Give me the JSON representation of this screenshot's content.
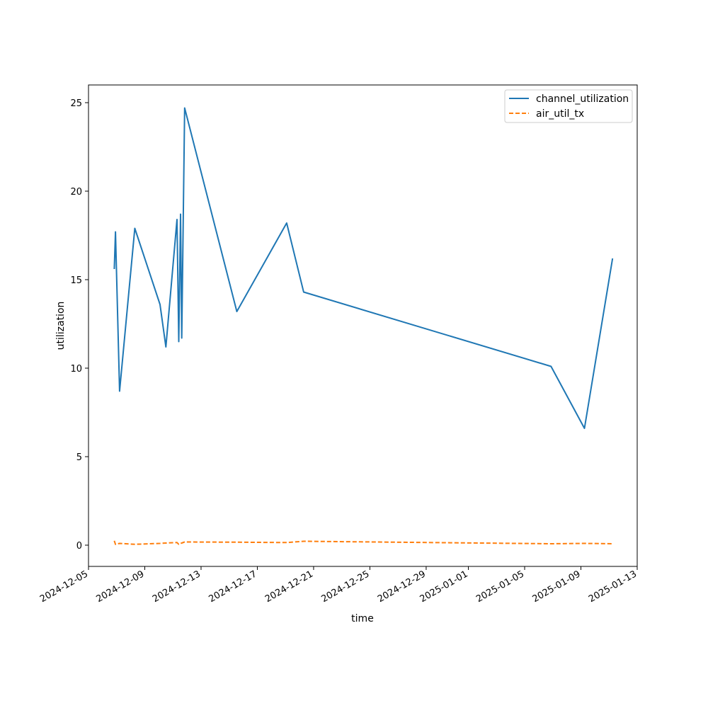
{
  "chart_data": {
    "type": "line",
    "title": "",
    "xlabel": "time",
    "ylabel": "utilization",
    "xlim": [
      "2024-12-05T00:00",
      "2025-01-13T00:00"
    ],
    "ylim": [
      -1.2,
      26
    ],
    "x_ticks": [
      "2024-12-05",
      "2024-12-09",
      "2024-12-13",
      "2024-12-17",
      "2024-12-21",
      "2024-12-25",
      "2024-12-29",
      "2025-01-01",
      "2025-01-05",
      "2025-01-09",
      "2025-01-13"
    ],
    "y_ticks": [
      0,
      5,
      10,
      15,
      20,
      25
    ],
    "grid": false,
    "legend": "top-right",
    "series": [
      {
        "name": "channel_utilization",
        "color": "#1f77b4",
        "style": "solid",
        "points": [
          {
            "x": "2024-12-06T20:00",
            "y": 15.6
          },
          {
            "x": "2024-12-06T22:00",
            "y": 17.7
          },
          {
            "x": "2024-12-07T05:00",
            "y": 8.7
          },
          {
            "x": "2024-12-08T07:00",
            "y": 17.9
          },
          {
            "x": "2024-12-10T02:00",
            "y": 13.6
          },
          {
            "x": "2024-12-10T12:00",
            "y": 11.2
          },
          {
            "x": "2024-12-11T07:00",
            "y": 18.4
          },
          {
            "x": "2024-12-11T10:00",
            "y": 11.5
          },
          {
            "x": "2024-12-11T13:00",
            "y": 18.7
          },
          {
            "x": "2024-12-11T15:00",
            "y": 11.7
          },
          {
            "x": "2024-12-11T20:00",
            "y": 24.7
          },
          {
            "x": "2024-12-15T13:00",
            "y": 13.2
          },
          {
            "x": "2024-12-19T02:00",
            "y": 18.2
          },
          {
            "x": "2024-12-20T07:00",
            "y": 14.3
          },
          {
            "x": "2025-01-06T21:00",
            "y": 10.1
          },
          {
            "x": "2025-01-09T06:00",
            "y": 6.6
          },
          {
            "x": "2025-01-11T06:00",
            "y": 16.2
          }
        ]
      },
      {
        "name": "air_util_tx",
        "color": "#ff7f0e",
        "style": "dashed",
        "points": [
          {
            "x": "2024-12-06T20:00",
            "y": 0.25
          },
          {
            "x": "2024-12-06T22:00",
            "y": 0.05
          },
          {
            "x": "2024-12-07T05:00",
            "y": 0.1
          },
          {
            "x": "2024-12-08T07:00",
            "y": 0.05
          },
          {
            "x": "2024-12-10T02:00",
            "y": 0.1
          },
          {
            "x": "2024-12-10T12:00",
            "y": 0.12
          },
          {
            "x": "2024-12-11T07:00",
            "y": 0.15
          },
          {
            "x": "2024-12-11T10:00",
            "y": 0.05
          },
          {
            "x": "2024-12-11T13:00",
            "y": 0.1
          },
          {
            "x": "2024-12-11T15:00",
            "y": 0.12
          },
          {
            "x": "2024-12-11T20:00",
            "y": 0.18
          },
          {
            "x": "2024-12-15T13:00",
            "y": 0.17
          },
          {
            "x": "2024-12-19T02:00",
            "y": 0.15
          },
          {
            "x": "2024-12-20T07:00",
            "y": 0.22
          },
          {
            "x": "2025-01-06T21:00",
            "y": 0.08
          },
          {
            "x": "2025-01-09T06:00",
            "y": 0.1
          },
          {
            "x": "2025-01-11T06:00",
            "y": 0.08
          }
        ]
      }
    ]
  }
}
